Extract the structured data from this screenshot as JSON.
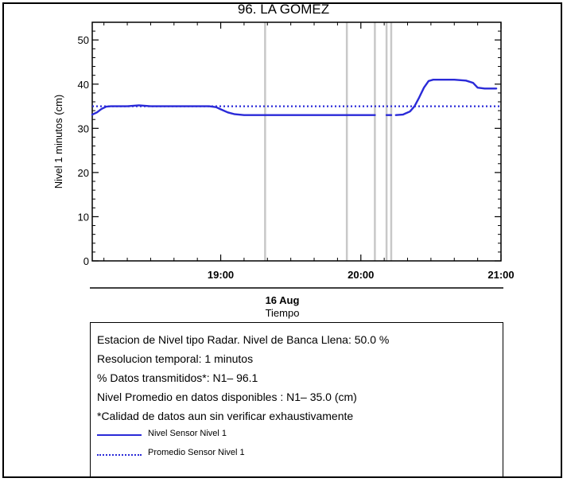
{
  "title": "96. LA GOMEZ",
  "chart_data": {
    "type": "line",
    "title": "96. LA GOMEZ",
    "xlabel": "Tiempo",
    "date_label": "16 Aug",
    "ylabel": "Nivel 1 minutos (cm)",
    "xlim": [
      "18:05",
      "21:00"
    ],
    "ylim": [
      0,
      54
    ],
    "x_ticks": [
      "19:00",
      "20:00",
      "21:00"
    ],
    "y_ticks": [
      0,
      10,
      20,
      30,
      40,
      50
    ],
    "gaps": [
      "19:19",
      "19:54",
      "20:06",
      "20:11",
      "20:13"
    ],
    "series": [
      {
        "name": "Nivel Sensor Nivel 1",
        "style": "solid",
        "color": "#2a2ad8",
        "segments": [
          {
            "x": [
              "18:05",
              "18:07",
              "18:09",
              "18:11",
              "18:13",
              "18:15",
              "18:20",
              "18:25",
              "18:30",
              "18:35",
              "18:40",
              "18:45",
              "18:50",
              "18:55",
              "18:58",
              "19:00",
              "19:03",
              "19:06",
              "19:10",
              "19:15",
              "19:19"
            ],
            "y": [
              33.1,
              33.6,
              34.4,
              34.9,
              35.0,
              35.0,
              35.0,
              35.2,
              35.0,
              35.0,
              35.0,
              35.0,
              35.0,
              35.0,
              34.8,
              34.3,
              33.6,
              33.2,
              33.0,
              33.0,
              33.0
            ]
          },
          {
            "x": [
              "19:19",
              "19:25",
              "19:30",
              "19:35",
              "19:40",
              "19:45",
              "19:50",
              "19:54"
            ],
            "y": [
              33.0,
              33.0,
              33.0,
              33.0,
              33.0,
              33.0,
              33.0,
              33.0
            ]
          },
          {
            "x": [
              "19:54",
              "19:56",
              "19:59",
              "20:02",
              "20:05",
              "20:06"
            ],
            "y": [
              33.0,
              33.0,
              33.0,
              33.0,
              33.0,
              33.0
            ]
          },
          {
            "x": [
              "20:11",
              "20:13"
            ],
            "y": [
              33.0,
              33.0
            ]
          },
          {
            "x": [
              "20:15",
              "20:18",
              "20:21",
              "20:23",
              "20:25",
              "20:27",
              "20:29",
              "20:31",
              "20:33",
              "20:35",
              "20:40",
              "20:45",
              "20:48",
              "20:50",
              "20:53",
              "20:56",
              "20:58"
            ],
            "y": [
              33.0,
              33.1,
              33.8,
              35.0,
              37.0,
              39.2,
              40.7,
              41.0,
              41.0,
              41.0,
              41.0,
              40.8,
              40.3,
              39.2,
              39.0,
              39.0,
              39.0
            ]
          }
        ]
      },
      {
        "name": "Promedio Sensor Nivel 1",
        "style": "dotted",
        "color": "#2a2ad8",
        "x": [
          "18:05",
          "21:00"
        ],
        "y": [
          35.0,
          35.0
        ]
      }
    ]
  },
  "info": {
    "line1": "Estacion de Nivel tipo Radar. Nivel de Banca Llena: 50.0 %",
    "line2": "Resolucion temporal: 1 minutos",
    "line3": "% Datos transmitidos*: N1– 96.1",
    "line4": "Nivel Promedio en datos disponibles : N1– 35.0 (cm)",
    "line5": "*Calidad de datos aun sin verificar exhaustivamente"
  },
  "legend": {
    "item1": "Nivel Sensor Nivel 1",
    "item2": "Promedio Sensor Nivel 1"
  }
}
